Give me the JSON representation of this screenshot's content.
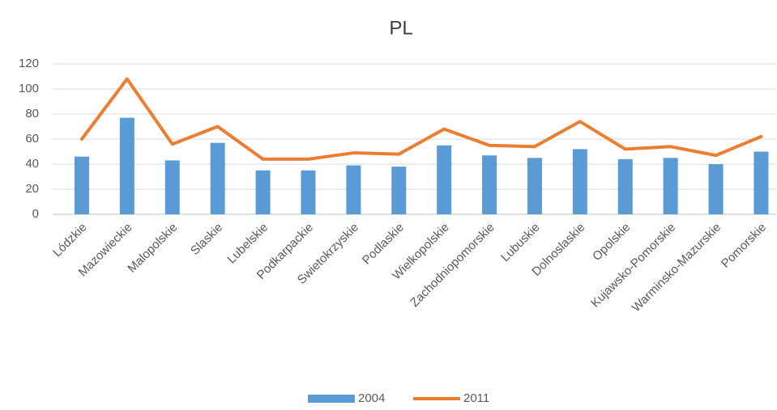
{
  "chart_data": {
    "type": "bar",
    "title": "PL",
    "categories": [
      "Lódzkie",
      "Mazowieckie",
      "Malopolskie",
      "Slaskie",
      "Lubelskie",
      "Podkarpackie",
      "Swietokrzyskie",
      "Podlaskie",
      "Wielkopolskie",
      "Zachodniopomorskie",
      "Lubuskie",
      "Dolnoslaskie",
      "Opolskie",
      "Kujawsko-Pomorskie",
      "Warminsko-Mazurskie",
      "Pomorskie"
    ],
    "series": [
      {
        "name": "2004",
        "type": "bar",
        "color": "#5b9bd5",
        "values": [
          46,
          77,
          43,
          57,
          35,
          35,
          39,
          38,
          55,
          47,
          45,
          52,
          44,
          45,
          40,
          50
        ]
      },
      {
        "name": "2011",
        "type": "line",
        "color": "#ed7d31",
        "values": [
          60,
          108,
          56,
          70,
          44,
          44,
          49,
          48,
          68,
          55,
          54,
          74,
          52,
          54,
          47,
          62
        ]
      }
    ],
    "ylim": [
      0,
      120
    ],
    "yticks": [
      0,
      20,
      40,
      60,
      80,
      100,
      120
    ],
    "grid": true,
    "legend": "bottom"
  }
}
